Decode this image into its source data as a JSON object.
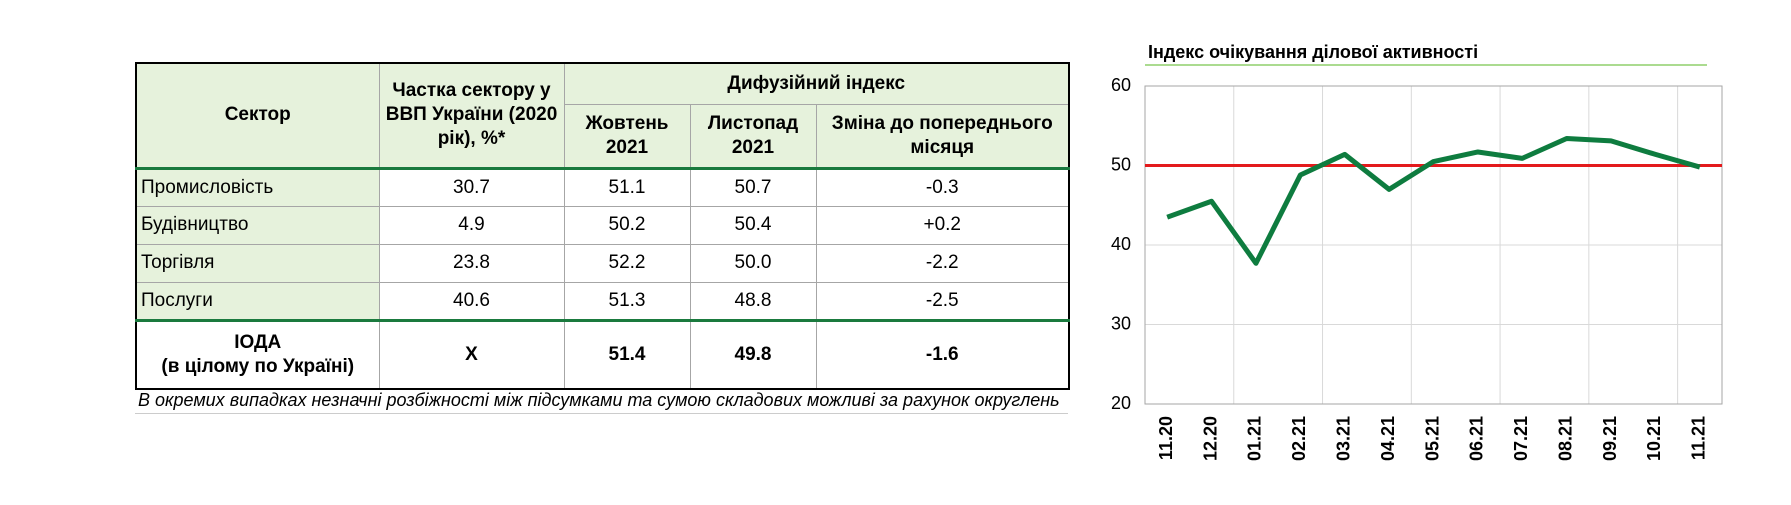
{
  "table": {
    "header": {
      "sector": "Сектор",
      "share": "Частка сектору у ВВП України (2020 рік), %*",
      "index": "Дифузійний індекс",
      "oct": "Жовтень 2021",
      "nov": "Листопад 2021",
      "change": "Зміна до попереднього місяця"
    },
    "rows": [
      [
        "Промисловість",
        "30.7",
        "51.1",
        "50.7",
        "-0.3"
      ],
      [
        "Будівництво",
        "4.9",
        "50.2",
        "50.4",
        "+0.2"
      ],
      [
        "Торгівля",
        "23.8",
        "52.2",
        "50.0",
        "-2.2"
      ],
      [
        "Послуги",
        "40.6",
        "51.3",
        "48.8",
        "-2.5"
      ]
    ],
    "total": {
      "label": [
        "ІОДА",
        "(в цілому по Україні)"
      ],
      "cells": [
        "Х",
        "51.4",
        "49.8",
        "-1.6"
      ]
    },
    "footnote": "В окремих випадках незначні розбіжності між підсумками та сумою складових можливі за рахунок округлень"
  },
  "chart_data": {
    "type": "line",
    "title": "Індекс очікування ділової активності",
    "categories": [
      "11.20",
      "12.20",
      "01.21",
      "02.21",
      "03.21",
      "04.21",
      "05.21",
      "06.21",
      "07.21",
      "08.21",
      "09.21",
      "10.21",
      "11.21"
    ],
    "values": [
      43.5,
      45.5,
      37.7,
      48.8,
      51.4,
      47.0,
      50.5,
      51.7,
      50.9,
      53.4,
      53.1,
      51.4,
      49.8
    ],
    "color": "#0e7c3f",
    "reference_line": {
      "value": 50,
      "color": "#e31a1c"
    },
    "ylim": [
      20,
      60
    ],
    "yticks": [
      20,
      30,
      40,
      50,
      60
    ],
    "grid": true
  }
}
